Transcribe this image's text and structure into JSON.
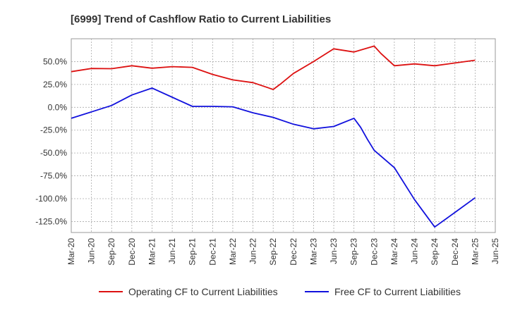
{
  "chart_data": {
    "type": "line",
    "title": "[6999]  Trend of Cashflow Ratio to Current Liabilities",
    "xlabel": "",
    "ylabel": "",
    "x_ticks": [
      "Mar-20",
      "Jun-20",
      "Sep-20",
      "Dec-20",
      "Mar-21",
      "Jun-21",
      "Sep-21",
      "Dec-21",
      "Mar-22",
      "Jun-22",
      "Sep-22",
      "Dec-22",
      "Mar-23",
      "Jun-23",
      "Sep-23",
      "Dec-23",
      "Mar-24",
      "Jun-24",
      "Sep-24",
      "Dec-24",
      "Mar-25",
      "Jun-25"
    ],
    "y_ticks": [
      50,
      25,
      0,
      -25,
      -50,
      -75,
      -100,
      -125
    ],
    "y_tick_labels": [
      "50.0%",
      "25.0%",
      "0.0%",
      "-25.0%",
      "-50.0%",
      "-75.0%",
      "-100.0%",
      "-125.0%"
    ],
    "ylim": [
      -137,
      75
    ],
    "grid": true,
    "legend_position": "bottom",
    "series": [
      {
        "name": "Operating CF to Current Liabilities",
        "color": "#dd1111",
        "x": [
          "Mar-20",
          "Jun-20",
          "Sep-20",
          "Dec-20",
          "Mar-21",
          "Jun-21",
          "Sep-21",
          "Dec-21",
          "Mar-22",
          "Jun-22",
          "Sep-22",
          "Oct-22",
          "Dec-22",
          "Mar-23",
          "Jun-23",
          "Sep-23",
          "Dec-23",
          "Jan-24",
          "Mar-24",
          "Jun-24",
          "Sep-24",
          "Dec-24",
          "Mar-25"
        ],
        "values": [
          39,
          42.5,
          42.2,
          45.5,
          42.8,
          44.5,
          43.7,
          36,
          30,
          27,
          19.5,
          25,
          37,
          50,
          64,
          60.5,
          67,
          59,
          45.5,
          47.5,
          45.5,
          48.5,
          51.5
        ]
      },
      {
        "name": "Free CF to Current Liabilities",
        "color": "#1111dd",
        "x": [
          "Mar-20",
          "Jun-20",
          "Sep-20",
          "Dec-20",
          "Mar-21",
          "Jun-21",
          "Sep-21",
          "Dec-21",
          "Mar-22",
          "Jun-22",
          "Sep-22",
          "Dec-22",
          "Mar-23",
          "Jun-23",
          "Sep-23",
          "Oct-23",
          "Nov-23",
          "Dec-23",
          "Mar-24",
          "Jun-24",
          "Sep-24",
          "Dec-24",
          "Mar-25"
        ],
        "values": [
          -12,
          -5,
          2,
          13.5,
          21,
          11,
          1,
          1,
          0.5,
          -6,
          -11,
          -18.5,
          -23.5,
          -21,
          -12,
          -22,
          -35,
          -47,
          -66,
          -101,
          -131,
          -115,
          -99
        ]
      }
    ]
  }
}
